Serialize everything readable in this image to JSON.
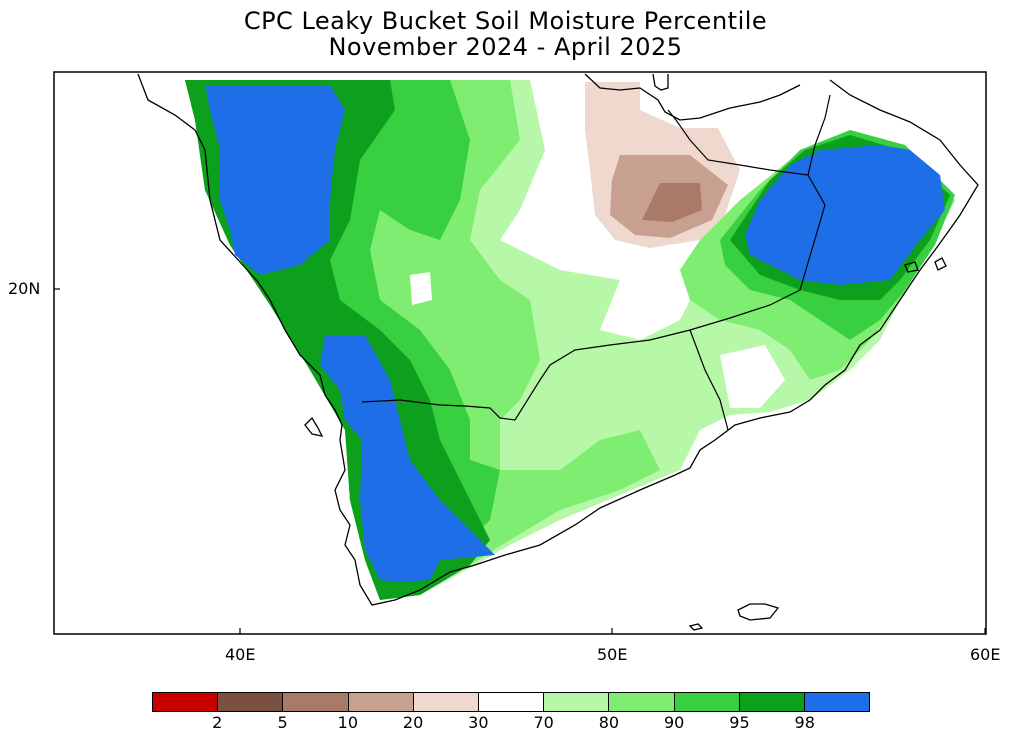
{
  "title": {
    "line1": "CPC Leaky Bucket Soil Moisture Percentile",
    "line2": "November 2024 - April 2025"
  },
  "axes": {
    "x_ticks": [
      "40E",
      "50E",
      "60E"
    ],
    "y_ticks": [
      "20N"
    ]
  },
  "colorbar": {
    "colors": [
      "#c80000",
      "#7a5040",
      "#a97a68",
      "#c8a090",
      "#efd9cf",
      "#ffffff",
      "#b7f8a8",
      "#7eed72",
      "#38d040",
      "#0ca01c",
      "#1e6ee8"
    ],
    "labels": [
      "2",
      "5",
      "10",
      "20",
      "30",
      "70",
      "80",
      "90",
      "95",
      "98"
    ]
  },
  "chart_data": {
    "type": "heatmap",
    "title": "CPC Leaky Bucket Soil Moisture Percentile",
    "subtitle": "November 2024 - April 2025",
    "xlim": [
      "35E",
      "60E"
    ],
    "ylim": [
      "below 15N",
      "above 25N"
    ],
    "bins": [
      {
        "range": "<2",
        "color": "#c80000"
      },
      {
        "range": "2-5",
        "color": "#7a5040"
      },
      {
        "range": "5-10",
        "color": "#a97a68"
      },
      {
        "range": "10-20",
        "color": "#c8a090"
      },
      {
        "range": "20-30",
        "color": "#efd9cf"
      },
      {
        "range": "30-70",
        "color": "#ffffff"
      },
      {
        "range": "70-80",
        "color": "#b7f8a8"
      },
      {
        "range": "80-90",
        "color": "#7eed72"
      },
      {
        "range": "90-95",
        "color": "#38d040"
      },
      {
        "range": "95-98",
        "color": "#0ca01c"
      },
      {
        "range": ">98",
        "color": "#1e6ee8"
      }
    ],
    "regions": [
      {
        "area": "western Saudi Arabia (Hejaz/Asir coast)",
        "percentile_bin": ">98"
      },
      {
        "area": "western Yemen highlands",
        "percentile_bin": ">98"
      },
      {
        "area": "northern Oman",
        "percentile_bin": ">98"
      },
      {
        "area": "central Saudi Arabia",
        "percentile_bin": "80-95"
      },
      {
        "area": "southern Yemen / Hadramawt",
        "percentile_bin": "70-95"
      },
      {
        "area": "Empty Quarter (Rub al Khali) center",
        "percentile_bin": "5-30"
      },
      {
        "area": "southern Oman (Dhofar)",
        "percentile_bin": "30-90"
      }
    ]
  }
}
